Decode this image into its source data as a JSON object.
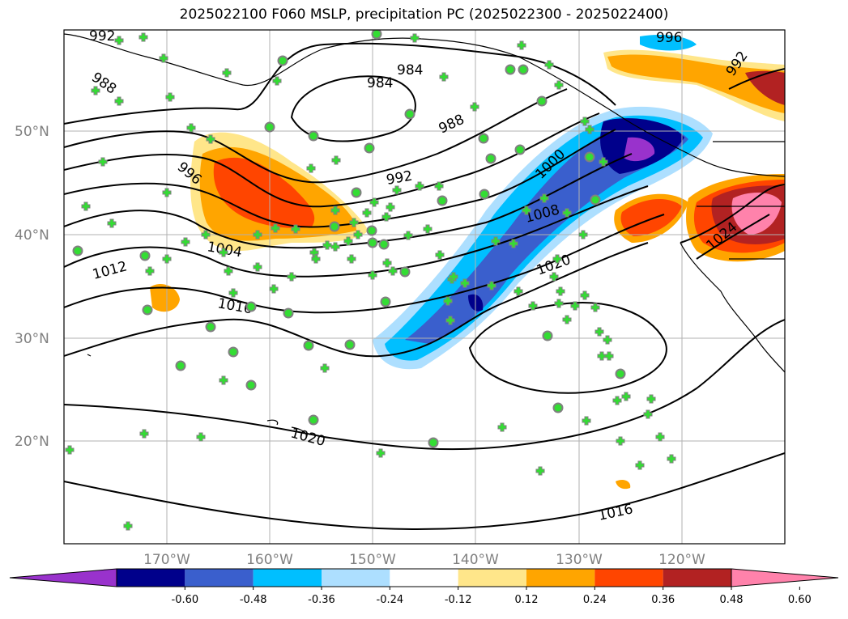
{
  "title": "2025022100 F060 MSLP, precipitation PC (2025022300 - 2025022400)",
  "lat_labels": [
    "50°N",
    "40°N",
    "30°N",
    "20°N"
  ],
  "lon_labels": [
    "170°W",
    "160°W",
    "150°W",
    "140°W",
    "130°W",
    "120°W"
  ],
  "contour_labels": [
    "992",
    "988",
    "984",
    "984",
    "988",
    "992",
    "996",
    "996",
    "1000",
    "1004",
    "1008",
    "1012",
    "1016",
    "1020",
    "1020",
    "1024",
    "992",
    "1016"
  ],
  "colorbar": {
    "ticks": [
      "-0.60",
      "-0.48",
      "-0.36",
      "-0.24",
      "-0.12",
      "0.12",
      "0.24",
      "0.36",
      "0.48",
      "0.60"
    ],
    "colors": [
      "#9932CC",
      "#00008B",
      "#3A5FCD",
      "#00BFFF",
      "#ADDFFF",
      "#FFFFFF",
      "#FFE68A",
      "#FFA500",
      "#FF4500",
      "#B22222",
      "#FF82AB"
    ]
  },
  "station_markers": {
    "colors": {
      "fill": "#33DD33",
      "edge": "#808080"
    },
    "note_types": [
      "circle",
      "plus"
    ]
  }
}
